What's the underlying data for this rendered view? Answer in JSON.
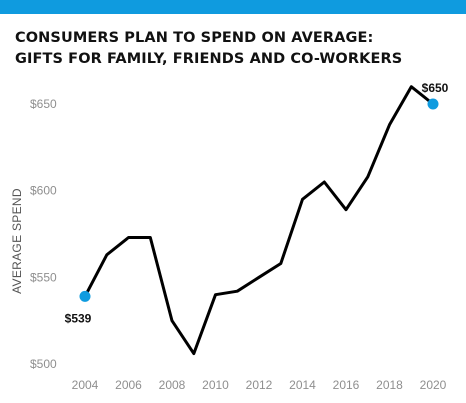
{
  "colors": {
    "top_bar": "#0f9bdf",
    "line": "#000000",
    "marker": "#0f9bdf",
    "text": "#111111",
    "tick": "#8f8f8f"
  },
  "chart_data": {
    "type": "line",
    "title_lines": [
      "CONSUMERS PLAN TO SPEND ON AVERAGE:",
      "GIFTS FOR FAMILY, FRIENDS AND CO-WORKERS"
    ],
    "xlabel": "",
    "ylabel": "AVERAGE SPEND",
    "xlim": [
      2004,
      2020
    ],
    "ylim": [
      500,
      650
    ],
    "x_ticks": [
      2004,
      2006,
      2008,
      2010,
      2012,
      2014,
      2016,
      2018,
      2020
    ],
    "y_ticks": [
      500,
      550,
      600,
      650
    ],
    "y_tick_labels": [
      "$500",
      "$550",
      "$600",
      "$650"
    ],
    "grid": false,
    "series": [
      {
        "x": [
          2004,
          2005,
          2006,
          2007,
          2008,
          2009,
          2010,
          2011,
          2012,
          2013,
          2014,
          2015,
          2016,
          2017,
          2018,
          2019,
          2020
        ],
        "values": [
          539,
          563,
          573,
          573,
          525,
          506,
          540,
          542,
          550,
          558,
          595,
          605,
          589,
          608,
          638,
          660,
          650
        ]
      }
    ],
    "annotations": [
      {
        "x": 2004,
        "y": 539,
        "text": "$539",
        "position": "below"
      },
      {
        "x": 2020,
        "y": 650,
        "text": "$650",
        "position": "above"
      }
    ]
  }
}
